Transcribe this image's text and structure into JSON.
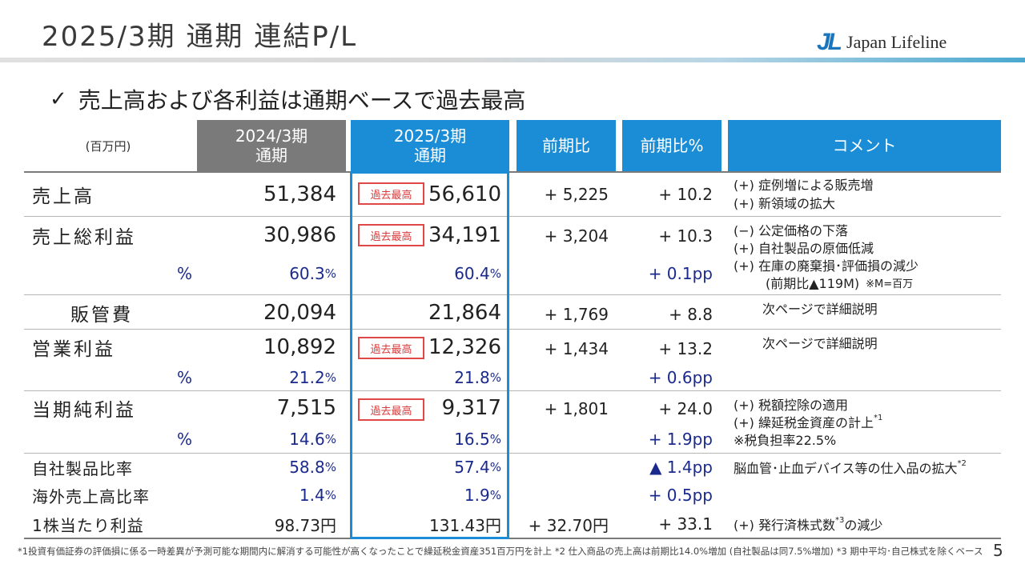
{
  "header": {
    "title": "2025/3期 通期 連結P/L",
    "logo_mark": "JL",
    "logo_name": "Japan Lifeline"
  },
  "subtitle": "売上高および各利益は通期ベースで過去最高",
  "table": {
    "unit": "(百万円)",
    "columns": {
      "fy2024_line1": "2024/3期",
      "fy2024_line2": "通期",
      "fy2025_line1": "2025/3期",
      "fy2025_line2": "通期",
      "diff": "前期比",
      "diff_pct": "前期比%",
      "comment": "コメント"
    },
    "record_badge": "過去最高",
    "pct_symbol": "%",
    "rows": {
      "sales": {
        "label": "売上高",
        "fy2024": "51,384",
        "fy2025": "56,610",
        "diff": "+ 5,225",
        "diff_pct": "+ 10.2",
        "comments": [
          "(+) 症例増による販売増",
          "(+) 新領域の拡大"
        ]
      },
      "gross_profit": {
        "label": "売上総利益",
        "fy2024": "30,986",
        "fy2025": "34,191",
        "diff": "+ 3,204",
        "diff_pct": "+ 10.3",
        "pct_fy2024": "60.3",
        "pct_fy2025": "60.4",
        "pct_diff": "+ 0.1pp",
        "comments": [
          "(−) 公定価格の下落",
          "(+) 自社製品の原価低減",
          "(+) 在庫の廃棄損･評価損の減少"
        ],
        "comment_detail": "(前期比▲119M)",
        "comment_note": "※M=百万"
      },
      "sga": {
        "label": "販管費",
        "fy2024": "20,094",
        "fy2025": "21,864",
        "diff": "+ 1,769",
        "diff_pct": "+ 8.8",
        "comment": "次ページで詳細説明"
      },
      "operating_profit": {
        "label": "営業利益",
        "fy2024": "10,892",
        "fy2025": "12,326",
        "diff": "+ 1,434",
        "diff_pct": "+ 13.2",
        "pct_fy2024": "21.2",
        "pct_fy2025": "21.8",
        "pct_diff": "+ 0.6pp",
        "comment": "次ページで詳細説明"
      },
      "net_income": {
        "label": "当期純利益",
        "fy2024": "7,515",
        "fy2025": "9,317",
        "diff": "+ 1,801",
        "diff_pct": "+ 24.0",
        "pct_fy2024": "14.6",
        "pct_fy2025": "16.5",
        "pct_diff": "+ 1.9pp",
        "comment_1": "(+) 税額控除の適用",
        "comment_2": "(+) 繰延税金資産の計上",
        "comment_2_sup": "*1",
        "comment_3": "※税負担率22.5%"
      },
      "own_products_ratio": {
        "label": "自社製品比率",
        "fy2024": "58.8",
        "fy2025": "57.4",
        "diff_pct": "▲ 1.4pp",
        "comment": "脳血管･止血デバイス等の仕入品の拡大",
        "comment_sup": "*2"
      },
      "overseas_ratio": {
        "label": "海外売上高比率",
        "fy2024": "1.4",
        "fy2025": "1.9",
        "diff_pct": "+ 0.5pp"
      },
      "eps": {
        "label": "1株当たり利益",
        "fy2024": "98.73円",
        "fy2025": "131.43円",
        "diff": "+ 32.70円",
        "diff_pct": "+ 33.1",
        "comment_pre": "(+) 発行済株式数",
        "comment_sup": "*3",
        "comment_post": "の減少"
      }
    }
  },
  "footnote": "*1投資有価証券の評価損に係る一時差異が予測可能な期間内に解消する可能性が高くなったことで繰延税金資産351百万円を計上 *2 仕入商品の売上高は前期比14.0%増加 (自社製品は同7.5%増加) *3 期中平均･自己株式を除くベース",
  "page_number": "5",
  "colors": {
    "accent_blue": "#1a8dd6",
    "header_gray": "#7a7a7a",
    "badge_red": "#e04848",
    "pct_navy": "#1a2a8c"
  }
}
